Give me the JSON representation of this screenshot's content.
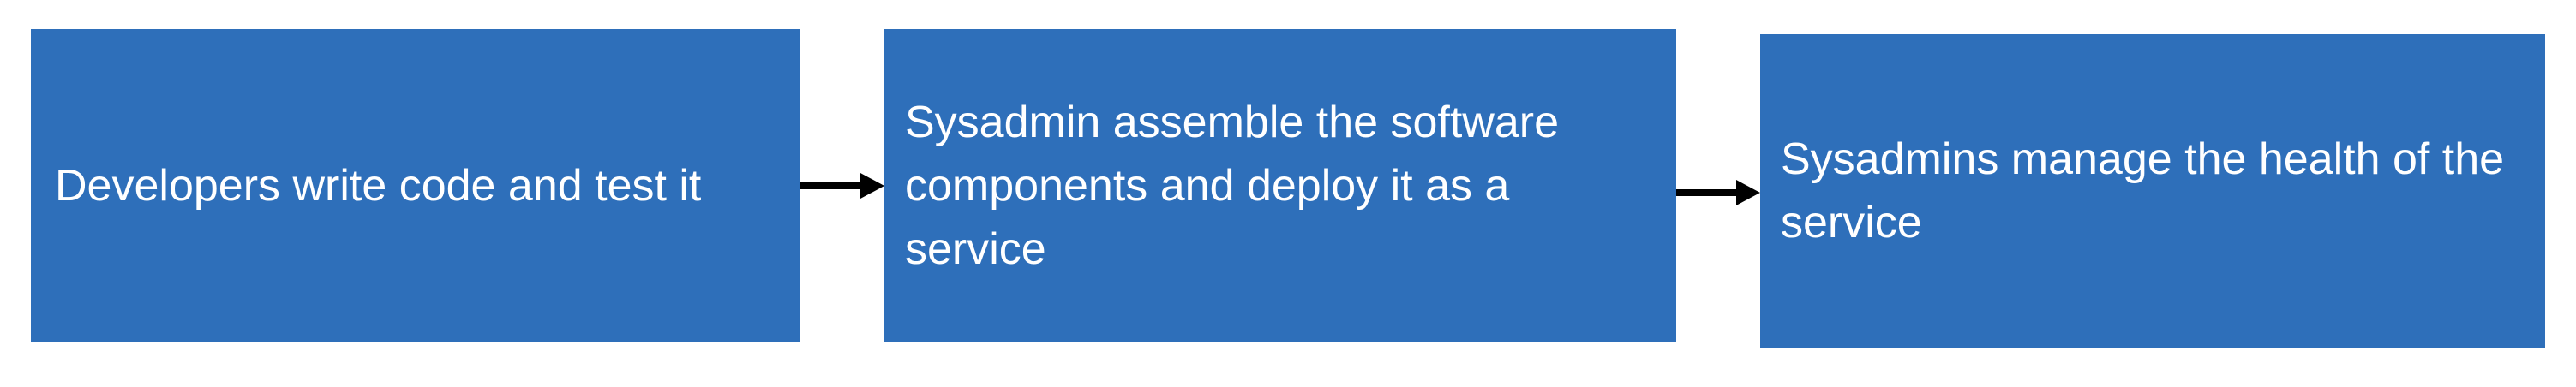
{
  "diagram": {
    "nodes": [
      {
        "label": "Developers write code and test it"
      },
      {
        "label": "Sysadmin assemble the software components and deploy it as a service"
      },
      {
        "label": "Sysadmins manage the health of the service"
      }
    ],
    "edges": [
      {
        "from": 0,
        "to": 1
      },
      {
        "from": 1,
        "to": 2
      }
    ],
    "colors": {
      "box_fill": "#2e6fba",
      "box_text": "#ffffff",
      "arrow": "#000000"
    }
  }
}
